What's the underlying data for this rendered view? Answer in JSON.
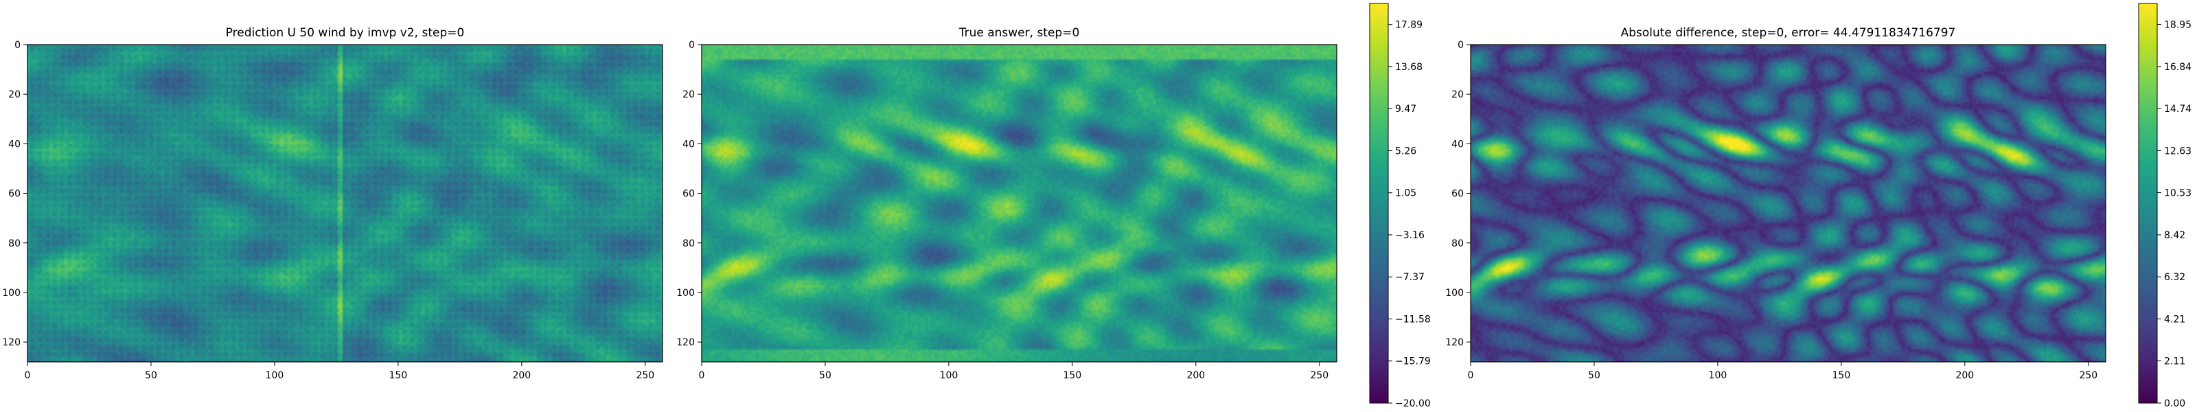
{
  "figure": {
    "background": "#ffffff"
  },
  "chart_data": [
    {
      "type": "heatmap",
      "title": "Prediction U 50 wind by imvp v2, step=0",
      "xlim": [
        0,
        257
      ],
      "ylim": [
        128,
        0
      ],
      "xticks": [
        0,
        50,
        100,
        150,
        200,
        250
      ],
      "yticks": [
        0,
        20,
        40,
        60,
        80,
        100,
        120
      ],
      "colormap": "viridis",
      "colorbar": false,
      "grid": false
    },
    {
      "type": "heatmap",
      "title": "True answer, step=0",
      "xlim": [
        0,
        257
      ],
      "ylim": [
        128,
        0
      ],
      "xticks": [
        0,
        50,
        100,
        150,
        200,
        250
      ],
      "yticks": [
        0,
        20,
        40,
        60,
        80,
        100,
        120
      ],
      "colormap": "viridis",
      "colorbar": true,
      "colorbar_range": [
        -20.0,
        20.0
      ],
      "colorbar_ticks": [
        "17.89",
        "13.68",
        "9.47",
        "5.26",
        "1.05",
        "−3.16",
        "−7.37",
        "−11.58",
        "−15.79",
        "−20.00"
      ],
      "grid": false
    },
    {
      "type": "heatmap",
      "title": "Absolute difference, step=0, error= 44.47911834716797",
      "xlim": [
        0,
        257
      ],
      "ylim": [
        128,
        0
      ],
      "xticks": [
        0,
        50,
        100,
        150,
        200,
        250
      ],
      "yticks": [
        0,
        20,
        40,
        60,
        80,
        100,
        120
      ],
      "colormap": "viridis",
      "colorbar": true,
      "colorbar_range": [
        0.0,
        20.0
      ],
      "colorbar_ticks": [
        "18.95",
        "16.84",
        "14.74",
        "12.63",
        "10.53",
        "8.42",
        "6.32",
        "4.21",
        "2.11",
        "0.00"
      ],
      "grid": false
    }
  ]
}
